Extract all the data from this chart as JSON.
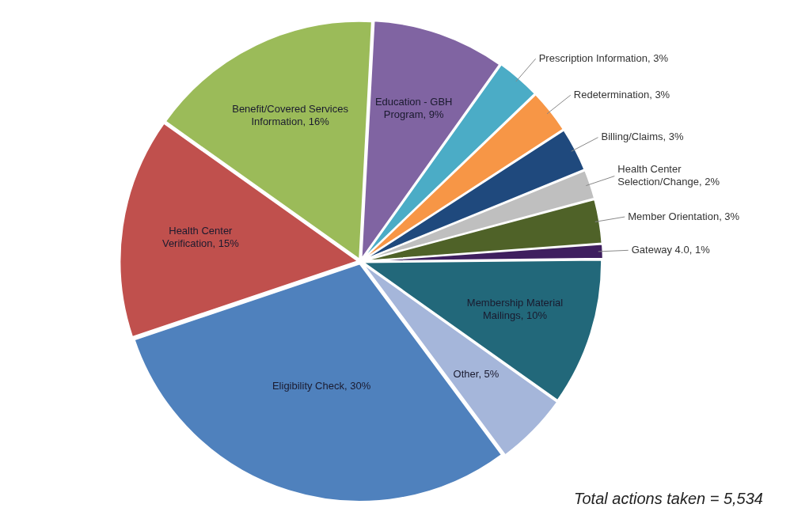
{
  "chart_data": {
    "type": "pie",
    "categories": [
      "Education - GBH Program",
      "Prescription Information",
      "Redetermination",
      "Billing/Claims",
      "Health Center Selection/Change",
      "Member Orientation",
      "Gateway 4.0",
      "Membership Material Mailings",
      "Other",
      "Eligibility Check",
      "Health Center Verification",
      "Benefit/Covered Services Information"
    ],
    "values": [
      9,
      3,
      3,
      3,
      2,
      3,
      1,
      10,
      5,
      30,
      15,
      16
    ],
    "value_labels": [
      "9%",
      "3%",
      "3%",
      "3%",
      "2%",
      "3%",
      "1%",
      "10%",
      "5%",
      "30%",
      "15%",
      "16%"
    ],
    "colors": [
      "#8064a2",
      "#4bacc6",
      "#f79646",
      "#1f497d",
      "#bfbfbf",
      "#4f6228",
      "#3f1f5f",
      "#22687a",
      "#a5b6da",
      "#4f81bd",
      "#c0504d",
      "#9bbb59"
    ],
    "legend": false,
    "annotations": [
      "Total actions taken = 5,534"
    ]
  }
}
